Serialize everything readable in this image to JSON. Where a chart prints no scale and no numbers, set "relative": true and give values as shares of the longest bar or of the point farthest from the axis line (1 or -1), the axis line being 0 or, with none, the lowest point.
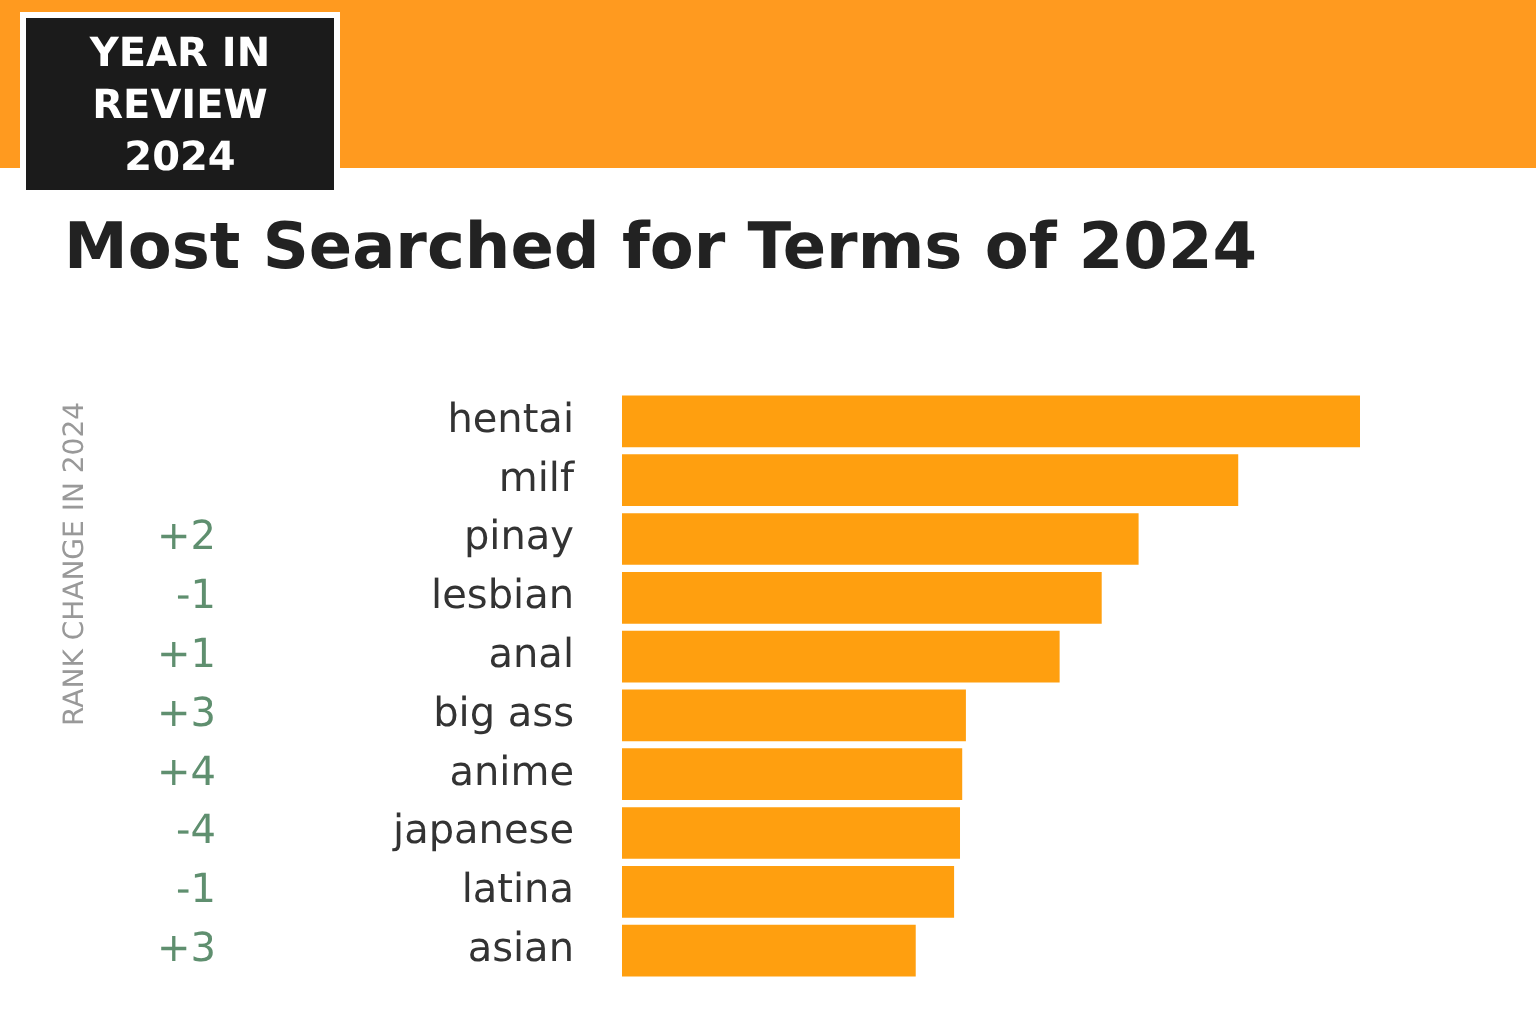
{
  "chart_data": {
    "type": "bar",
    "orientation": "horizontal",
    "relative": true,
    "title": "Most Searched for Terms of 2024",
    "categories": [
      "hentai",
      "milf",
      "pinay",
      "lesbian",
      "anal",
      "big ass",
      "anime",
      "japanese",
      "latina",
      "asian"
    ],
    "values": [
      1,
      0.835,
      0.7,
      0.65,
      0.593,
      0.466,
      0.461,
      0.458,
      0.45,
      0.398
    ],
    "color": "#ff9f0f",
    "legend": false,
    "annotations": [
      "YEAR IN REVIEW 2024",
      "RANK CHANGE IN 2024",
      "+2",
      "-1",
      "+1",
      "+3",
      "+4",
      "-4",
      "-1",
      "+3"
    ]
  }
}
